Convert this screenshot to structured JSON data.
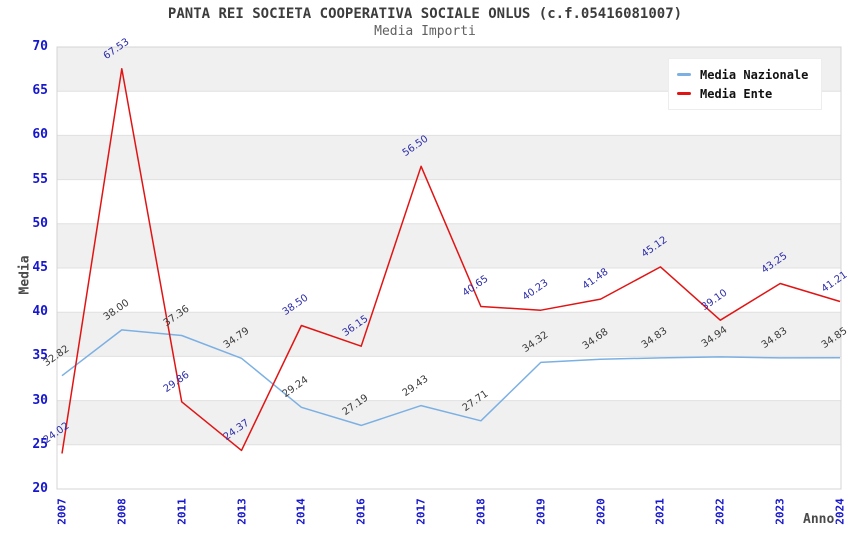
{
  "header": {
    "title": "PANTA REI SOCIETA COOPERATIVA SOCIALE ONLUS (c.f.05416081007)",
    "subtitle": "Media Importi"
  },
  "legend": {
    "items": [
      {
        "label": "Media Nazionale",
        "color": "#7cb0e3"
      },
      {
        "label": "Media Ente",
        "color": "#e11414"
      }
    ]
  },
  "axes": {
    "y_title": "Media",
    "x_title": "Anno"
  },
  "colors": {
    "axis_tick_text": "#1616cd",
    "band_gray": "#f0f0f0",
    "band_white": "#ffffff",
    "gridline": "#e0e0e0",
    "plot_border": "#d4d4d4",
    "nazionale_line": "#7cb0e3",
    "ente_line": "#e11414",
    "nazionale_label_text": "#3a3a3a",
    "ente_label_text": "#2c2caa"
  },
  "chart_data": {
    "type": "line",
    "title": "PANTA REI SOCIETA COOPERATIVA SOCIALE ONLUS (c.f.05416081007)",
    "subtitle": "Media Importi",
    "xlabel": "Anno",
    "ylabel": "Media",
    "ylim": [
      20,
      70
    ],
    "ytick_step": 5,
    "grid": true,
    "banded_background": true,
    "legend_position": "top-right",
    "categories": [
      "2007",
      "2008",
      "2011",
      "2013",
      "2014",
      "2016",
      "2017",
      "2018",
      "2019",
      "2020",
      "2021",
      "2022",
      "2023",
      "2024"
    ],
    "series": [
      {
        "name": "Media Nazionale",
        "color": "#7cb0e3",
        "label_color": "#3a3a3a",
        "values": [
          32.82,
          38.0,
          37.36,
          34.79,
          29.24,
          27.19,
          29.43,
          27.71,
          34.32,
          34.68,
          34.83,
          34.94,
          34.83,
          34.85
        ]
      },
      {
        "name": "Media Ente",
        "color": "#e11414",
        "label_color": "#2c2caa",
        "values": [
          24.02,
          67.53,
          29.86,
          24.37,
          38.5,
          36.15,
          56.5,
          40.65,
          40.23,
          41.48,
          45.12,
          39.1,
          43.25,
          41.21
        ]
      }
    ]
  }
}
